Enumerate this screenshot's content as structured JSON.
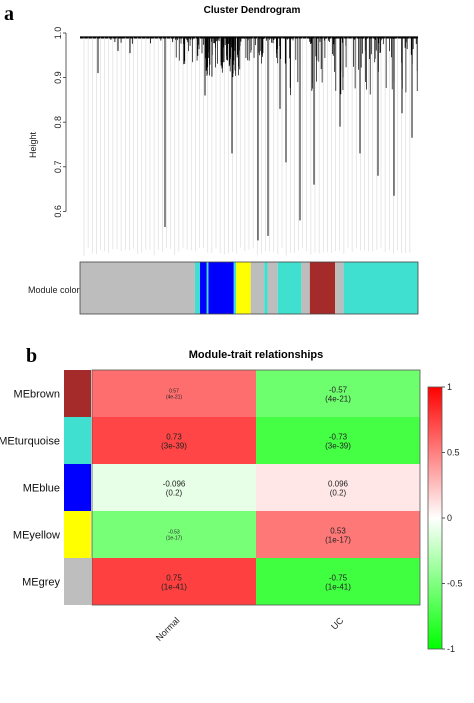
{
  "chart_data": [
    {
      "type": "dendrogram",
      "panel_label": "a",
      "title": "Cluster Dendrogram",
      "ylabel": "Height",
      "ylim": [
        0.5,
        1.0
      ],
      "yticks": [
        "0.6",
        "0.7",
        "0.8",
        "0.9",
        "1.0"
      ],
      "ytick_values": [
        0.6,
        0.7,
        0.8,
        0.9,
        1.0
      ],
      "color_bar_label": "Module colors",
      "color_bar": [
        {
          "module": "grey",
          "color": "#bdbdbd",
          "from": 0.0,
          "to": 0.34
        },
        {
          "module": "turquoise",
          "color": "#40e0d0",
          "from": 0.34,
          "to": 0.355
        },
        {
          "module": "blue",
          "color": "#0000ff",
          "from": 0.355,
          "to": 0.375
        },
        {
          "module": "turquoise",
          "color": "#40e0d0",
          "from": 0.375,
          "to": 0.38
        },
        {
          "module": "blue",
          "color": "#0000ff",
          "from": 0.38,
          "to": 0.455
        },
        {
          "module": "turquoise",
          "color": "#40e0d0",
          "from": 0.455,
          "to": 0.462
        },
        {
          "module": "yellow",
          "color": "#ffff00",
          "from": 0.462,
          "to": 0.505
        },
        {
          "module": "grey",
          "color": "#bdbdbd",
          "from": 0.505,
          "to": 0.545
        },
        {
          "module": "turquoise",
          "color": "#40e0d0",
          "from": 0.545,
          "to": 0.555
        },
        {
          "module": "grey",
          "color": "#bdbdbd",
          "from": 0.555,
          "to": 0.585
        },
        {
          "module": "turquoise",
          "color": "#40e0d0",
          "from": 0.585,
          "to": 0.655
        },
        {
          "module": "grey",
          "color": "#bdbdbd",
          "from": 0.655,
          "to": 0.68
        },
        {
          "module": "brown",
          "color": "#a52a2a",
          "from": 0.68,
          "to": 0.755
        },
        {
          "module": "grey",
          "color": "#bdbdbd",
          "from": 0.755,
          "to": 0.78
        },
        {
          "module": "turquoise",
          "color": "#40e0d0",
          "from": 0.78,
          "to": 1.0
        }
      ]
    },
    {
      "type": "heatmap",
      "panel_label": "b",
      "title": "Module-trait relationships",
      "columns": [
        "Normal",
        "UC"
      ],
      "rows": [
        {
          "label": "MEbrown",
          "color": "#a52a2a",
          "values": [
            0.57,
            -0.57
          ],
          "texts": [
            "0.57",
            "-0.57"
          ],
          "pvalues": [
            "(4e-21)",
            "(4e-21)"
          ]
        },
        {
          "label": "MEturquoise",
          "color": "#40e0d0",
          "values": [
            0.73,
            -0.73
          ],
          "texts": [
            "0.73",
            "-0.73"
          ],
          "pvalues": [
            "(3e-39)",
            "(3e-39)"
          ]
        },
        {
          "label": "MEblue",
          "color": "#0000ff",
          "values": [
            -0.096,
            0.096
          ],
          "texts": [
            "-0.096",
            "0.096"
          ],
          "pvalues": [
            "(0.2)",
            "(0.2)"
          ]
        },
        {
          "label": "MEyellow",
          "color": "#ffff00",
          "values": [
            -0.53,
            0.53
          ],
          "texts": [
            "-0.53",
            "0.53"
          ],
          "pvalues": [
            "(1e-17)",
            "(1e-17)"
          ]
        },
        {
          "label": "MEgrey",
          "color": "#bebebe",
          "values": [
            0.75,
            -0.75
          ],
          "texts": [
            "0.75",
            "-0.75"
          ],
          "pvalues": [
            "(1e-41)",
            "(1e-41)"
          ]
        }
      ],
      "colorscale": {
        "low": "#00ff00",
        "mid": "#ffffff",
        "high": "#ff0000"
      },
      "legend_range": [
        -1,
        1
      ],
      "legend_ticks": [
        "1",
        "0.5",
        "0",
        "-0.5",
        "-1"
      ],
      "legend_tick_values": [
        1,
        0.5,
        0,
        -0.5,
        -1
      ]
    }
  ]
}
